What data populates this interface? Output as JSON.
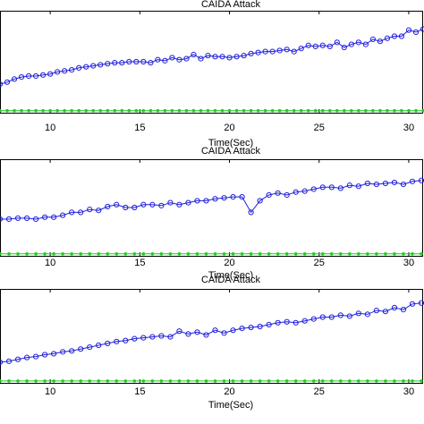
{
  "chart_data": [
    {
      "type": "line",
      "title": "CAIDA Attack",
      "xlabel": "Time(Sec)",
      "ylabel": "",
      "xlim": [
        7.2,
        30.8
      ],
      "ylim": [
        0,
        1
      ],
      "x_ticks": [
        10,
        15,
        20,
        25,
        30
      ],
      "x_tick_labels": [
        "10",
        "15",
        "20",
        "25",
        "30"
      ],
      "grid": false,
      "series": [
        {
          "color": "#1f1fdc",
          "marker": "circle",
          "x": [
            7.2,
            7.6,
            8.0,
            8.4,
            8.8,
            9.2,
            9.6,
            10.0,
            10.4,
            10.8,
            11.2,
            11.6,
            12.0,
            12.4,
            12.8,
            13.2,
            13.6,
            14.0,
            14.4,
            14.8,
            15.2,
            15.6,
            16.0,
            16.4,
            16.8,
            17.2,
            17.6,
            18.0,
            18.4,
            18.8,
            19.2,
            19.6,
            20.0,
            20.4,
            20.8,
            21.2,
            21.6,
            22.0,
            22.4,
            22.8,
            23.2,
            23.6,
            24.0,
            24.4,
            24.8,
            25.2,
            25.6,
            26.0,
            26.4,
            26.8,
            27.2,
            27.6,
            28.0,
            28.4,
            28.8,
            29.2,
            29.6,
            30.0,
            30.4,
            30.8
          ],
          "values": [
            0.28,
            0.3,
            0.33,
            0.35,
            0.36,
            0.36,
            0.37,
            0.38,
            0.4,
            0.41,
            0.42,
            0.44,
            0.45,
            0.46,
            0.47,
            0.48,
            0.49,
            0.49,
            0.5,
            0.5,
            0.5,
            0.49,
            0.52,
            0.51,
            0.54,
            0.52,
            0.53,
            0.57,
            0.53,
            0.56,
            0.55,
            0.55,
            0.54,
            0.55,
            0.56,
            0.58,
            0.59,
            0.6,
            0.6,
            0.61,
            0.62,
            0.6,
            0.63,
            0.66,
            0.65,
            0.66,
            0.65,
            0.69,
            0.64,
            0.67,
            0.69,
            0.67,
            0.72,
            0.7,
            0.73,
            0.75,
            0.75,
            0.81,
            0.79,
            0.82
          ]
        },
        {
          "color": "#1fcc1f",
          "marker": "dot",
          "x": [
            7.2,
            7.6,
            8.0,
            8.4,
            8.8,
            9.2,
            9.6,
            10.0,
            10.4,
            10.8,
            11.2,
            11.6,
            12.0,
            12.4,
            12.8,
            13.2,
            13.6,
            14.0,
            14.4,
            14.8,
            15.2,
            15.6,
            16.0,
            16.4,
            16.8,
            17.2,
            17.6,
            18.0,
            18.4,
            18.8,
            19.2,
            19.6,
            20.0,
            20.4,
            20.8,
            21.2,
            21.6,
            22.0,
            22.4,
            22.8,
            23.2,
            23.6,
            24.0,
            24.4,
            24.8,
            25.2,
            25.6,
            26.0,
            26.4,
            26.8,
            27.2,
            27.6,
            28.0,
            28.4,
            28.8,
            29.2,
            29.6,
            30.0,
            30.4,
            30.8
          ],
          "values": [
            0.02,
            0.02,
            0.02,
            0.02,
            0.02,
            0.02,
            0.02,
            0.02,
            0.02,
            0.02,
            0.02,
            0.02,
            0.02,
            0.02,
            0.02,
            0.02,
            0.02,
            0.02,
            0.02,
            0.02,
            0.02,
            0.02,
            0.02,
            0.02,
            0.02,
            0.02,
            0.02,
            0.02,
            0.02,
            0.02,
            0.02,
            0.02,
            0.02,
            0.02,
            0.02,
            0.02,
            0.02,
            0.02,
            0.02,
            0.02,
            0.02,
            0.02,
            0.02,
            0.02,
            0.02,
            0.02,
            0.02,
            0.02,
            0.02,
            0.02,
            0.02,
            0.02,
            0.02,
            0.02,
            0.02,
            0.02,
            0.02,
            0.02,
            0.02,
            0.02
          ]
        }
      ]
    },
    {
      "type": "line",
      "title": "CAIDA Attack",
      "xlabel": "Time(Sec)",
      "ylabel": "",
      "xlim": [
        7.2,
        30.8
      ],
      "ylim": [
        0,
        1
      ],
      "x_ticks": [
        10,
        15,
        20,
        25,
        30
      ],
      "x_tick_labels": [
        "10",
        "15",
        "20",
        "25",
        "30"
      ],
      "grid": false,
      "series": [
        {
          "color": "#1f1fdc",
          "marker": "circle",
          "x": [
            7.2,
            7.7,
            8.2,
            8.7,
            9.2,
            9.7,
            10.2,
            10.7,
            11.2,
            11.7,
            12.2,
            12.7,
            13.2,
            13.7,
            14.2,
            14.7,
            15.2,
            15.7,
            16.2,
            16.7,
            17.2,
            17.7,
            18.2,
            18.7,
            19.2,
            19.7,
            20.2,
            20.7,
            21.2,
            21.7,
            22.2,
            22.7,
            23.2,
            23.7,
            24.2,
            24.7,
            25.2,
            25.7,
            26.2,
            26.7,
            27.2,
            27.7,
            28.2,
            28.7,
            29.2,
            29.7,
            30.2,
            30.7
          ],
          "values": [
            0.38,
            0.38,
            0.39,
            0.39,
            0.38,
            0.4,
            0.4,
            0.42,
            0.45,
            0.45,
            0.48,
            0.47,
            0.51,
            0.53,
            0.5,
            0.5,
            0.53,
            0.53,
            0.52,
            0.55,
            0.53,
            0.55,
            0.57,
            0.57,
            0.59,
            0.6,
            0.61,
            0.61,
            0.45,
            0.57,
            0.63,
            0.65,
            0.63,
            0.66,
            0.67,
            0.69,
            0.71,
            0.71,
            0.7,
            0.73,
            0.72,
            0.75,
            0.74,
            0.75,
            0.76,
            0.74,
            0.77,
            0.78
          ]
        },
        {
          "color": "#1fcc1f",
          "marker": "dot",
          "x": [
            7.2,
            7.7,
            8.2,
            8.7,
            9.2,
            9.7,
            10.2,
            10.7,
            11.2,
            11.7,
            12.2,
            12.7,
            13.2,
            13.7,
            14.2,
            14.7,
            15.2,
            15.7,
            16.2,
            16.7,
            17.2,
            17.7,
            18.2,
            18.7,
            19.2,
            19.7,
            20.2,
            20.7,
            21.2,
            21.7,
            22.2,
            22.7,
            23.2,
            23.7,
            24.2,
            24.7,
            25.2,
            25.7,
            26.2,
            26.7,
            27.2,
            27.7,
            28.2,
            28.7,
            29.2,
            29.7,
            30.2,
            30.7
          ],
          "values": [
            0.02,
            0.02,
            0.02,
            0.02,
            0.02,
            0.02,
            0.02,
            0.02,
            0.02,
            0.02,
            0.02,
            0.02,
            0.02,
            0.02,
            0.02,
            0.02,
            0.02,
            0.02,
            0.02,
            0.02,
            0.02,
            0.02,
            0.02,
            0.02,
            0.02,
            0.02,
            0.02,
            0.02,
            0.02,
            0.02,
            0.02,
            0.02,
            0.02,
            0.02,
            0.02,
            0.02,
            0.02,
            0.02,
            0.02,
            0.02,
            0.02,
            0.02,
            0.02,
            0.02,
            0.02,
            0.02,
            0.02,
            0.02
          ]
        }
      ]
    },
    {
      "type": "line",
      "title": "CAIDA Attack",
      "xlabel": "Time(Sec)",
      "ylabel": "",
      "xlim": [
        7.2,
        30.8
      ],
      "ylim": [
        0,
        1
      ],
      "x_ticks": [
        10,
        15,
        20,
        25,
        30
      ],
      "x_tick_labels": [
        "10",
        "15",
        "20",
        "25",
        "30"
      ],
      "grid": false,
      "series": [
        {
          "color": "#1f1fdc",
          "marker": "circle",
          "x": [
            7.2,
            7.7,
            8.2,
            8.7,
            9.2,
            9.7,
            10.2,
            10.7,
            11.2,
            11.7,
            12.2,
            12.7,
            13.2,
            13.7,
            14.2,
            14.7,
            15.2,
            15.7,
            16.2,
            16.7,
            17.2,
            17.7,
            18.2,
            18.7,
            19.2,
            19.7,
            20.2,
            20.7,
            21.2,
            21.7,
            22.2,
            22.7,
            23.2,
            23.7,
            24.2,
            24.7,
            25.2,
            25.7,
            26.2,
            26.7,
            27.2,
            27.7,
            28.2,
            28.7,
            29.2,
            29.7,
            30.2,
            30.7
          ],
          "values": [
            0.22,
            0.23,
            0.25,
            0.27,
            0.28,
            0.3,
            0.31,
            0.33,
            0.34,
            0.36,
            0.38,
            0.4,
            0.42,
            0.44,
            0.45,
            0.47,
            0.48,
            0.49,
            0.5,
            0.49,
            0.55,
            0.52,
            0.54,
            0.51,
            0.56,
            0.53,
            0.56,
            0.58,
            0.59,
            0.6,
            0.62,
            0.64,
            0.65,
            0.64,
            0.66,
            0.68,
            0.7,
            0.7,
            0.72,
            0.71,
            0.74,
            0.73,
            0.77,
            0.76,
            0.8,
            0.78,
            0.84,
            0.85
          ]
        },
        {
          "color": "#1fcc1f",
          "marker": "dot",
          "x": [
            7.2,
            7.7,
            8.2,
            8.7,
            9.2,
            9.7,
            10.2,
            10.7,
            11.2,
            11.7,
            12.2,
            12.7,
            13.2,
            13.7,
            14.2,
            14.7,
            15.2,
            15.7,
            16.2,
            16.7,
            17.2,
            17.7,
            18.2,
            18.7,
            19.2,
            19.7,
            20.2,
            20.7,
            21.2,
            21.7,
            22.2,
            22.7,
            23.2,
            23.7,
            24.2,
            24.7,
            25.2,
            25.7,
            26.2,
            26.7,
            27.2,
            27.7,
            28.2,
            28.7,
            29.2,
            29.7,
            30.2,
            30.7
          ],
          "values": [
            0.02,
            0.02,
            0.02,
            0.02,
            0.02,
            0.02,
            0.02,
            0.02,
            0.02,
            0.02,
            0.02,
            0.02,
            0.02,
            0.02,
            0.02,
            0.02,
            0.02,
            0.02,
            0.02,
            0.02,
            0.02,
            0.02,
            0.02,
            0.02,
            0.02,
            0.02,
            0.02,
            0.02,
            0.02,
            0.02,
            0.02,
            0.02,
            0.02,
            0.02,
            0.02,
            0.02,
            0.02,
            0.02,
            0.02,
            0.02,
            0.02,
            0.02,
            0.02,
            0.02,
            0.02,
            0.02,
            0.02,
            0.02
          ]
        }
      ]
    }
  ]
}
